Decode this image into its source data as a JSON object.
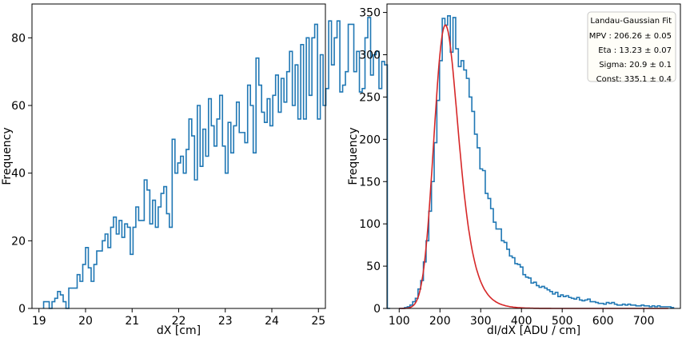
{
  "chart_data": [
    {
      "type": "histogram",
      "xlabel": "dX [cm]",
      "ylabel": "Frequency",
      "xlim": [
        18.85,
        25.15
      ],
      "ylim": [
        0,
        90
      ],
      "xticks": [
        19,
        20,
        21,
        22,
        23,
        24,
        25
      ],
      "yticks": [
        0,
        20,
        40,
        60,
        80
      ],
      "bin_start": 19.1,
      "bin_width": 0.06,
      "counts": [
        2,
        2,
        0,
        2,
        3,
        5,
        4,
        2,
        0,
        6,
        6,
        6,
        10,
        8,
        13,
        18,
        12,
        8,
        13,
        17,
        17,
        20,
        22,
        18,
        24,
        27,
        22,
        26,
        21,
        25,
        24,
        16,
        24,
        30,
        26,
        26,
        38,
        35,
        25,
        32,
        24,
        30,
        34,
        36,
        28,
        24,
        50,
        40,
        43,
        45,
        40,
        47,
        56,
        51,
        38,
        60,
        42,
        53,
        45,
        62,
        54,
        48,
        56,
        63,
        48,
        40,
        55,
        46,
        54,
        61,
        52,
        52,
        49,
        66,
        60,
        46,
        74,
        66,
        58,
        55,
        62,
        54,
        63,
        69,
        58,
        68,
        61,
        70,
        76,
        60,
        72,
        56,
        78,
        56,
        80,
        63,
        80,
        84,
        56,
        75,
        60,
        65,
        85,
        72,
        80,
        85,
        64,
        66,
        70,
        84,
        84,
        70,
        76,
        64,
        65,
        80,
        86,
        69,
        75,
        76,
        65,
        73,
        72,
        0
      ],
      "color": "#1f77b4"
    },
    {
      "type": "histogram",
      "xlabel": "dI/dX [ADU / cm]",
      "ylabel": "Frequency",
      "xlim": [
        70,
        790
      ],
      "ylim": [
        0,
        360
      ],
      "xticks": [
        100,
        200,
        300,
        400,
        500,
        600,
        700
      ],
      "yticks": [
        0,
        50,
        100,
        150,
        200,
        250,
        300,
        350
      ],
      "bin_start": 100,
      "bin_width": 6.6,
      "counts": [
        0,
        0,
        1,
        2,
        4,
        8,
        12,
        23,
        33,
        55,
        80,
        115,
        150,
        196,
        246,
        293,
        343,
        335,
        346,
        303,
        344,
        307,
        286,
        293,
        282,
        272,
        250,
        233,
        206,
        190,
        165,
        163,
        136,
        130,
        118,
        102,
        94,
        94,
        80,
        78,
        70,
        62,
        60,
        53,
        52,
        49,
        40,
        37,
        36,
        30,
        31,
        27,
        25,
        26,
        24,
        22,
        20,
        17,
        19,
        14,
        16,
        14,
        15,
        13,
        12,
        11,
        13,
        10,
        9,
        10,
        11,
        8,
        8,
        7,
        6,
        6,
        5,
        7,
        6,
        7,
        5,
        4,
        4,
        5,
        4,
        5,
        4,
        4,
        3,
        3,
        4,
        3,
        3,
        2,
        3,
        2,
        3,
        2,
        2,
        2,
        2,
        1
      ],
      "fit": {
        "name": "Landau-Gaussian Fit",
        "mpv": 206.26,
        "eta": 13.23,
        "sigma": 20.9,
        "const": 335.1,
        "x_range": [
          100,
          760
        ],
        "color": "#d62728"
      },
      "legend": {
        "position": "top-right",
        "title": "Landau-Gaussian Fit",
        "lines": [
          "MPV  : 206.26 ± 0.05",
          "Eta  : 13.23 ± 0.07",
          "Sigma: 20.9 ± 0.1",
          "Const: 335.1 ± 0.4"
        ]
      },
      "color": "#1f77b4"
    }
  ]
}
